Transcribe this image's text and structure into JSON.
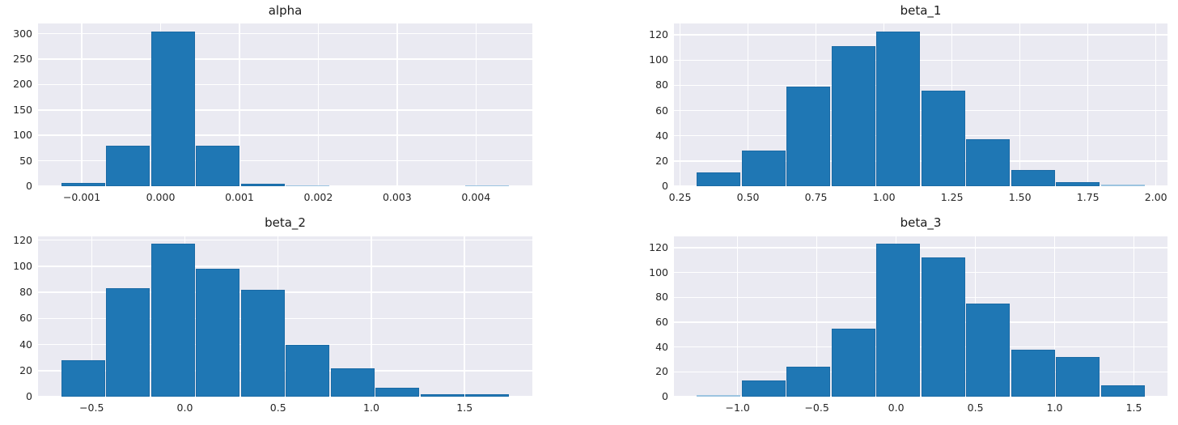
{
  "figure": {
    "background_color": "#ffffff",
    "plot_background_color": "#eaeaf2",
    "grid_color": "#ffffff",
    "bar_color": "#1f77b4",
    "bar_edge_color": "#1a6aa5",
    "small_bar_color": "#9cc4e0",
    "text_color": "#262626",
    "title_color": "#1a1a1a",
    "grid": true,
    "layout": "2x2 histogram grid"
  },
  "chart_data": [
    {
      "id": "alpha",
      "type": "bar",
      "subtype": "histogram",
      "title": "alpha",
      "bin_edges": [
        -0.00127,
        -0.0007,
        -0.00013,
        0.00044,
        0.00101,
        0.00158,
        0.00215,
        0.00272,
        0.00329,
        0.00386,
        0.00443
      ],
      "counts": [
        6,
        80,
        305,
        80,
        5,
        2,
        0,
        0,
        0,
        1
      ],
      "xlim": [
        -0.001555,
        0.004715
      ],
      "ylim": [
        0,
        320.25
      ],
      "xticks": [
        {
          "v": -0.001,
          "label": "−0.001"
        },
        {
          "v": 0.0,
          "label": "0.000"
        },
        {
          "v": 0.001,
          "label": "0.001"
        },
        {
          "v": 0.002,
          "label": "0.002"
        },
        {
          "v": 0.003,
          "label": "0.003"
        },
        {
          "v": 0.004,
          "label": "0.004"
        }
      ],
      "yticks": [
        {
          "v": 0,
          "label": "0"
        },
        {
          "v": 50,
          "label": "50"
        },
        {
          "v": 100,
          "label": "100"
        },
        {
          "v": 150,
          "label": "150"
        },
        {
          "v": 200,
          "label": "200"
        },
        {
          "v": 250,
          "label": "250"
        },
        {
          "v": 300,
          "label": "300"
        }
      ]
    },
    {
      "id": "beta_1",
      "type": "bar",
      "subtype": "histogram",
      "title": "beta_1",
      "bin_edges": [
        0.31,
        0.475,
        0.64,
        0.805,
        0.97,
        1.135,
        1.3,
        1.465,
        1.63,
        1.795,
        1.96
      ],
      "counts": [
        11,
        28,
        79,
        111,
        123,
        76,
        37,
        13,
        3,
        1
      ],
      "xlim": [
        0.2275,
        2.0425
      ],
      "ylim": [
        0,
        129.15
      ],
      "xticks": [
        {
          "v": 0.25,
          "label": "0.25"
        },
        {
          "v": 0.5,
          "label": "0.50"
        },
        {
          "v": 0.75,
          "label": "0.75"
        },
        {
          "v": 1.0,
          "label": "1.00"
        },
        {
          "v": 1.25,
          "label": "1.25"
        },
        {
          "v": 1.5,
          "label": "1.50"
        },
        {
          "v": 1.75,
          "label": "1.75"
        },
        {
          "v": 2.0,
          "label": "2.00"
        }
      ],
      "yticks": [
        {
          "v": 0,
          "label": "0"
        },
        {
          "v": 20,
          "label": "20"
        },
        {
          "v": 40,
          "label": "40"
        },
        {
          "v": 60,
          "label": "60"
        },
        {
          "v": 80,
          "label": "80"
        },
        {
          "v": 100,
          "label": "100"
        },
        {
          "v": 120,
          "label": "120"
        }
      ]
    },
    {
      "id": "beta_2",
      "type": "bar",
      "subtype": "histogram",
      "title": "beta_2",
      "bin_edges": [
        -0.667,
        -0.426,
        -0.185,
        0.056,
        0.297,
        0.538,
        0.779,
        1.02,
        1.261,
        1.502,
        1.743
      ],
      "counts": [
        28,
        83,
        117,
        98,
        82,
        40,
        22,
        7,
        2,
        2
      ],
      "xlim": [
        -0.7875,
        1.8635
      ],
      "ylim": [
        0,
        122.85
      ],
      "xticks": [
        {
          "v": -0.5,
          "label": "−0.5"
        },
        {
          "v": 0.0,
          "label": "0.0"
        },
        {
          "v": 0.5,
          "label": "0.5"
        },
        {
          "v": 1.0,
          "label": "1.0"
        },
        {
          "v": 1.5,
          "label": "1.5"
        }
      ],
      "yticks": [
        {
          "v": 0,
          "label": "0"
        },
        {
          "v": 20,
          "label": "20"
        },
        {
          "v": 40,
          "label": "40"
        },
        {
          "v": 60,
          "label": "60"
        },
        {
          "v": 80,
          "label": "80"
        },
        {
          "v": 100,
          "label": "100"
        },
        {
          "v": 120,
          "label": "120"
        }
      ]
    },
    {
      "id": "beta_3",
      "type": "bar",
      "subtype": "histogram",
      "title": "beta_3",
      "bin_edges": [
        -1.26,
        -0.977,
        -0.694,
        -0.411,
        -0.128,
        0.155,
        0.438,
        0.721,
        1.004,
        1.287,
        1.57
      ],
      "counts": [
        1,
        13,
        24,
        55,
        123,
        112,
        75,
        38,
        32,
        9
      ],
      "xlim": [
        -1.4015,
        1.7115
      ],
      "ylim": [
        0,
        129.15
      ],
      "xticks": [
        {
          "v": -1.0,
          "label": "−1.0"
        },
        {
          "v": -0.5,
          "label": "−0.5"
        },
        {
          "v": 0.0,
          "label": "0.0"
        },
        {
          "v": 0.5,
          "label": "0.5"
        },
        {
          "v": 1.0,
          "label": "1.0"
        },
        {
          "v": 1.5,
          "label": "1.5"
        }
      ],
      "yticks": [
        {
          "v": 0,
          "label": "0"
        },
        {
          "v": 20,
          "label": "20"
        },
        {
          "v": 40,
          "label": "40"
        },
        {
          "v": 60,
          "label": "60"
        },
        {
          "v": 80,
          "label": "80"
        },
        {
          "v": 100,
          "label": "100"
        },
        {
          "v": 120,
          "label": "120"
        }
      ]
    }
  ]
}
